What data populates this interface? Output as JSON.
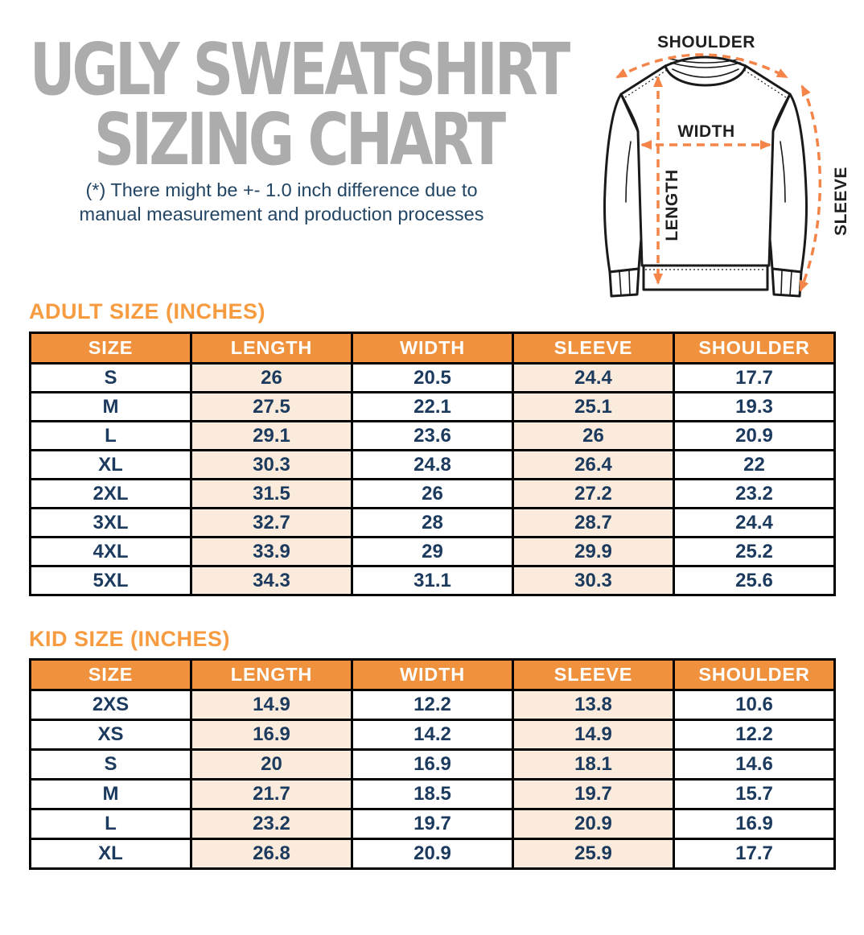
{
  "page": {
    "title_line1": "UGLY SWEATSHIRT",
    "title_line2": "SIZING CHART",
    "disclaimer_line1": "(*) There might be +- 1.0 inch difference due to",
    "disclaimer_line2": "manual measurement and production processes"
  },
  "diagram": {
    "shoulder_label": "SHOULDER",
    "width_label": "WIDTH",
    "length_label": "LENGTH",
    "sleeve_label": "SLEEVE"
  },
  "chart_data": [
    {
      "type": "table",
      "title": "ADULT SIZE (INCHES)",
      "columns": [
        "SIZE",
        "LENGTH",
        "WIDTH",
        "SLEEVE",
        "SHOULDER"
      ],
      "rows": [
        [
          "S",
          "26",
          "20.5",
          "24.4",
          "17.7"
        ],
        [
          "M",
          "27.5",
          "22.1",
          "25.1",
          "19.3"
        ],
        [
          "L",
          "29.1",
          "23.6",
          "26",
          "20.9"
        ],
        [
          "XL",
          "30.3",
          "24.8",
          "26.4",
          "22"
        ],
        [
          "2XL",
          "31.5",
          "26",
          "27.2",
          "23.2"
        ],
        [
          "3XL",
          "32.7",
          "28",
          "28.7",
          "24.4"
        ],
        [
          "4XL",
          "33.9",
          "29",
          "29.9",
          "25.2"
        ],
        [
          "5XL",
          "34.3",
          "31.1",
          "30.3",
          "25.6"
        ]
      ]
    },
    {
      "type": "table",
      "title": "KID SIZE (INCHES)",
      "columns": [
        "SIZE",
        "LENGTH",
        "WIDTH",
        "SLEEVE",
        "SHOULDER"
      ],
      "rows": [
        [
          "2XS",
          "14.9",
          "12.2",
          "13.8",
          "10.6"
        ],
        [
          "XS",
          "16.9",
          "14.2",
          "14.9",
          "12.2"
        ],
        [
          "S",
          "20",
          "16.9",
          "18.1",
          "14.6"
        ],
        [
          "M",
          "21.7",
          "18.5",
          "19.7",
          "15.7"
        ],
        [
          "L",
          "23.2",
          "19.7",
          "20.9",
          "16.9"
        ],
        [
          "XL",
          "26.8",
          "20.9",
          "25.9",
          "17.7"
        ]
      ]
    }
  ],
  "colors": {
    "table_header_orange": "#F0923D",
    "section_heading_orange": "#F79B40",
    "highlight_peach": "#FAEBDC",
    "text_navy": "#1C3A5E",
    "title_gray": "#ACACAC",
    "arrow_orange": "#F58449",
    "border_black": "#000000"
  }
}
